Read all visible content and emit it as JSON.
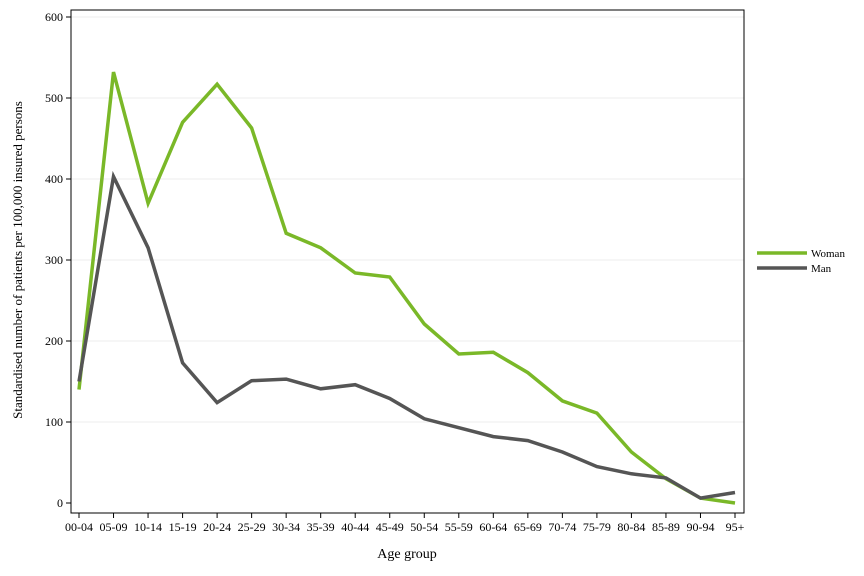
{
  "chart_data": {
    "type": "line",
    "title": "",
    "xlabel": "Age group",
    "ylabel": "Standardised number of patients per 100,000 insured persons",
    "categories": [
      "00-04",
      "05-09",
      "10-14",
      "15-19",
      "20-24",
      "25-29",
      "30-34",
      "35-39",
      "40-44",
      "45-49",
      "50-54",
      "55-59",
      "60-64",
      "65-69",
      "70-74",
      "75-79",
      "80-84",
      "85-89",
      "90-94",
      "95+"
    ],
    "yticks": [
      "0",
      "100",
      "200",
      "300",
      "400",
      "500",
      "600"
    ],
    "ylim": [
      0,
      600
    ],
    "grid": "horizontal",
    "legend_position": "right",
    "series": [
      {
        "name": "Woman",
        "color": "#7ab828",
        "values": [
          140,
          532,
          370,
          470,
          517,
          463,
          333,
          315,
          284,
          279,
          221,
          184,
          186,
          161,
          126,
          111,
          63,
          30,
          6,
          0
        ]
      },
      {
        "name": "Man",
        "color": "#555555",
        "values": [
          150,
          403,
          315,
          173,
          124,
          151,
          153,
          141,
          146,
          129,
          104,
          93,
          82,
          77,
          63,
          45,
          36,
          31,
          6,
          13
        ]
      }
    ]
  }
}
